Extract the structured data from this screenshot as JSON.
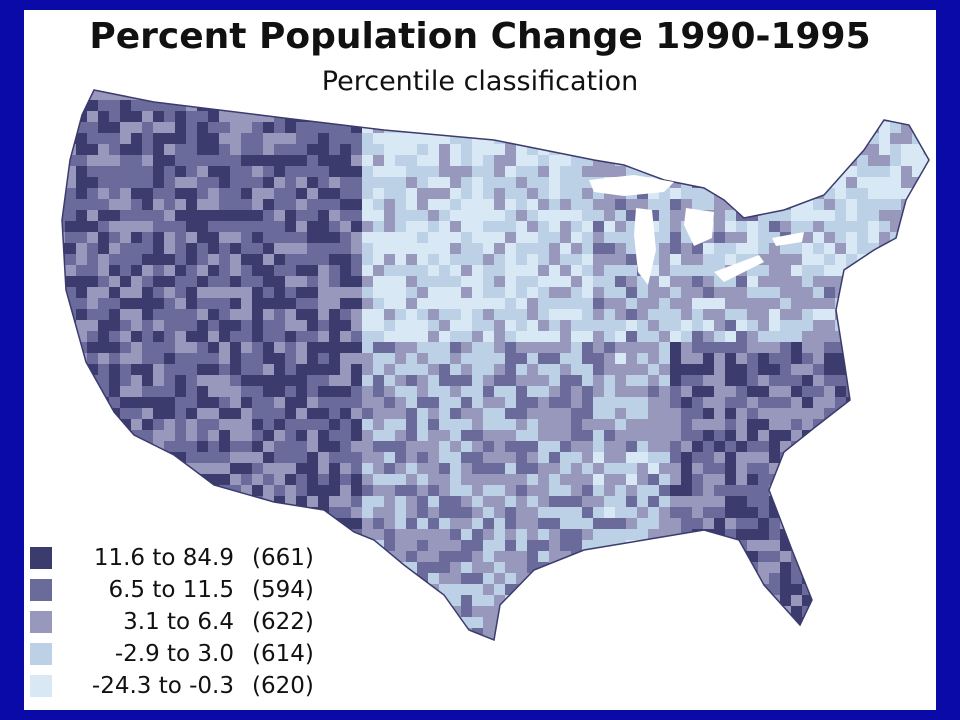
{
  "title": "Percent Population Change 1990-1995",
  "subtitle": "Percentile classification",
  "legend": [
    {
      "range": "11.6 to 84.9",
      "count": "(661)",
      "color": "#3b3b6e"
    },
    {
      "range": "6.5 to 11.5",
      "count": "(594)",
      "color": "#6a6a9b"
    },
    {
      "range": "3.1 to 6.4",
      "count": "(622)",
      "color": "#9898bd"
    },
    {
      "range": "-2.9 to 3.0",
      "count": "(614)",
      "color": "#bcd0e6"
    },
    {
      "range": "-24.3 to -0.3",
      "count": "(620)",
      "color": "#d9e8f5"
    }
  ],
  "colors": {
    "background": "#0a0aa8",
    "panel": "#ffffff"
  }
}
